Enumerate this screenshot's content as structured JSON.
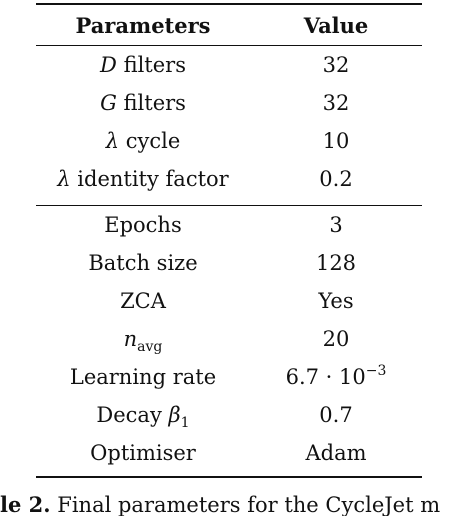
{
  "table": {
    "headers": {
      "parameter": "Parameters",
      "value": "Value"
    },
    "group1": [
      {
        "symbol": "D",
        "label": "filters",
        "value": "32"
      },
      {
        "symbol": "G",
        "label": "filters",
        "value": "32"
      },
      {
        "symbol": "λ",
        "label": "cycle",
        "value": "10"
      },
      {
        "symbol": "λ",
        "label": "identity factor",
        "value": "0.2"
      }
    ],
    "group2": [
      {
        "label": "Epochs",
        "value": "3"
      },
      {
        "label": "Batch size",
        "value": "128"
      },
      {
        "label": "ZCA",
        "value": "Yes"
      },
      {
        "symbol": "n",
        "subscript": "avg",
        "value": "20"
      },
      {
        "label": "Learning rate",
        "value_base": "6.7 · 10",
        "value_exponent": "−3"
      },
      {
        "label": "Decay",
        "symbol": "β",
        "subscript": "1",
        "value": "0.7"
      },
      {
        "label": "Optimiser",
        "value": "Adam"
      }
    ]
  },
  "caption": {
    "label": "le 2.",
    "text": "Final parameters for the CycleJet m"
  }
}
